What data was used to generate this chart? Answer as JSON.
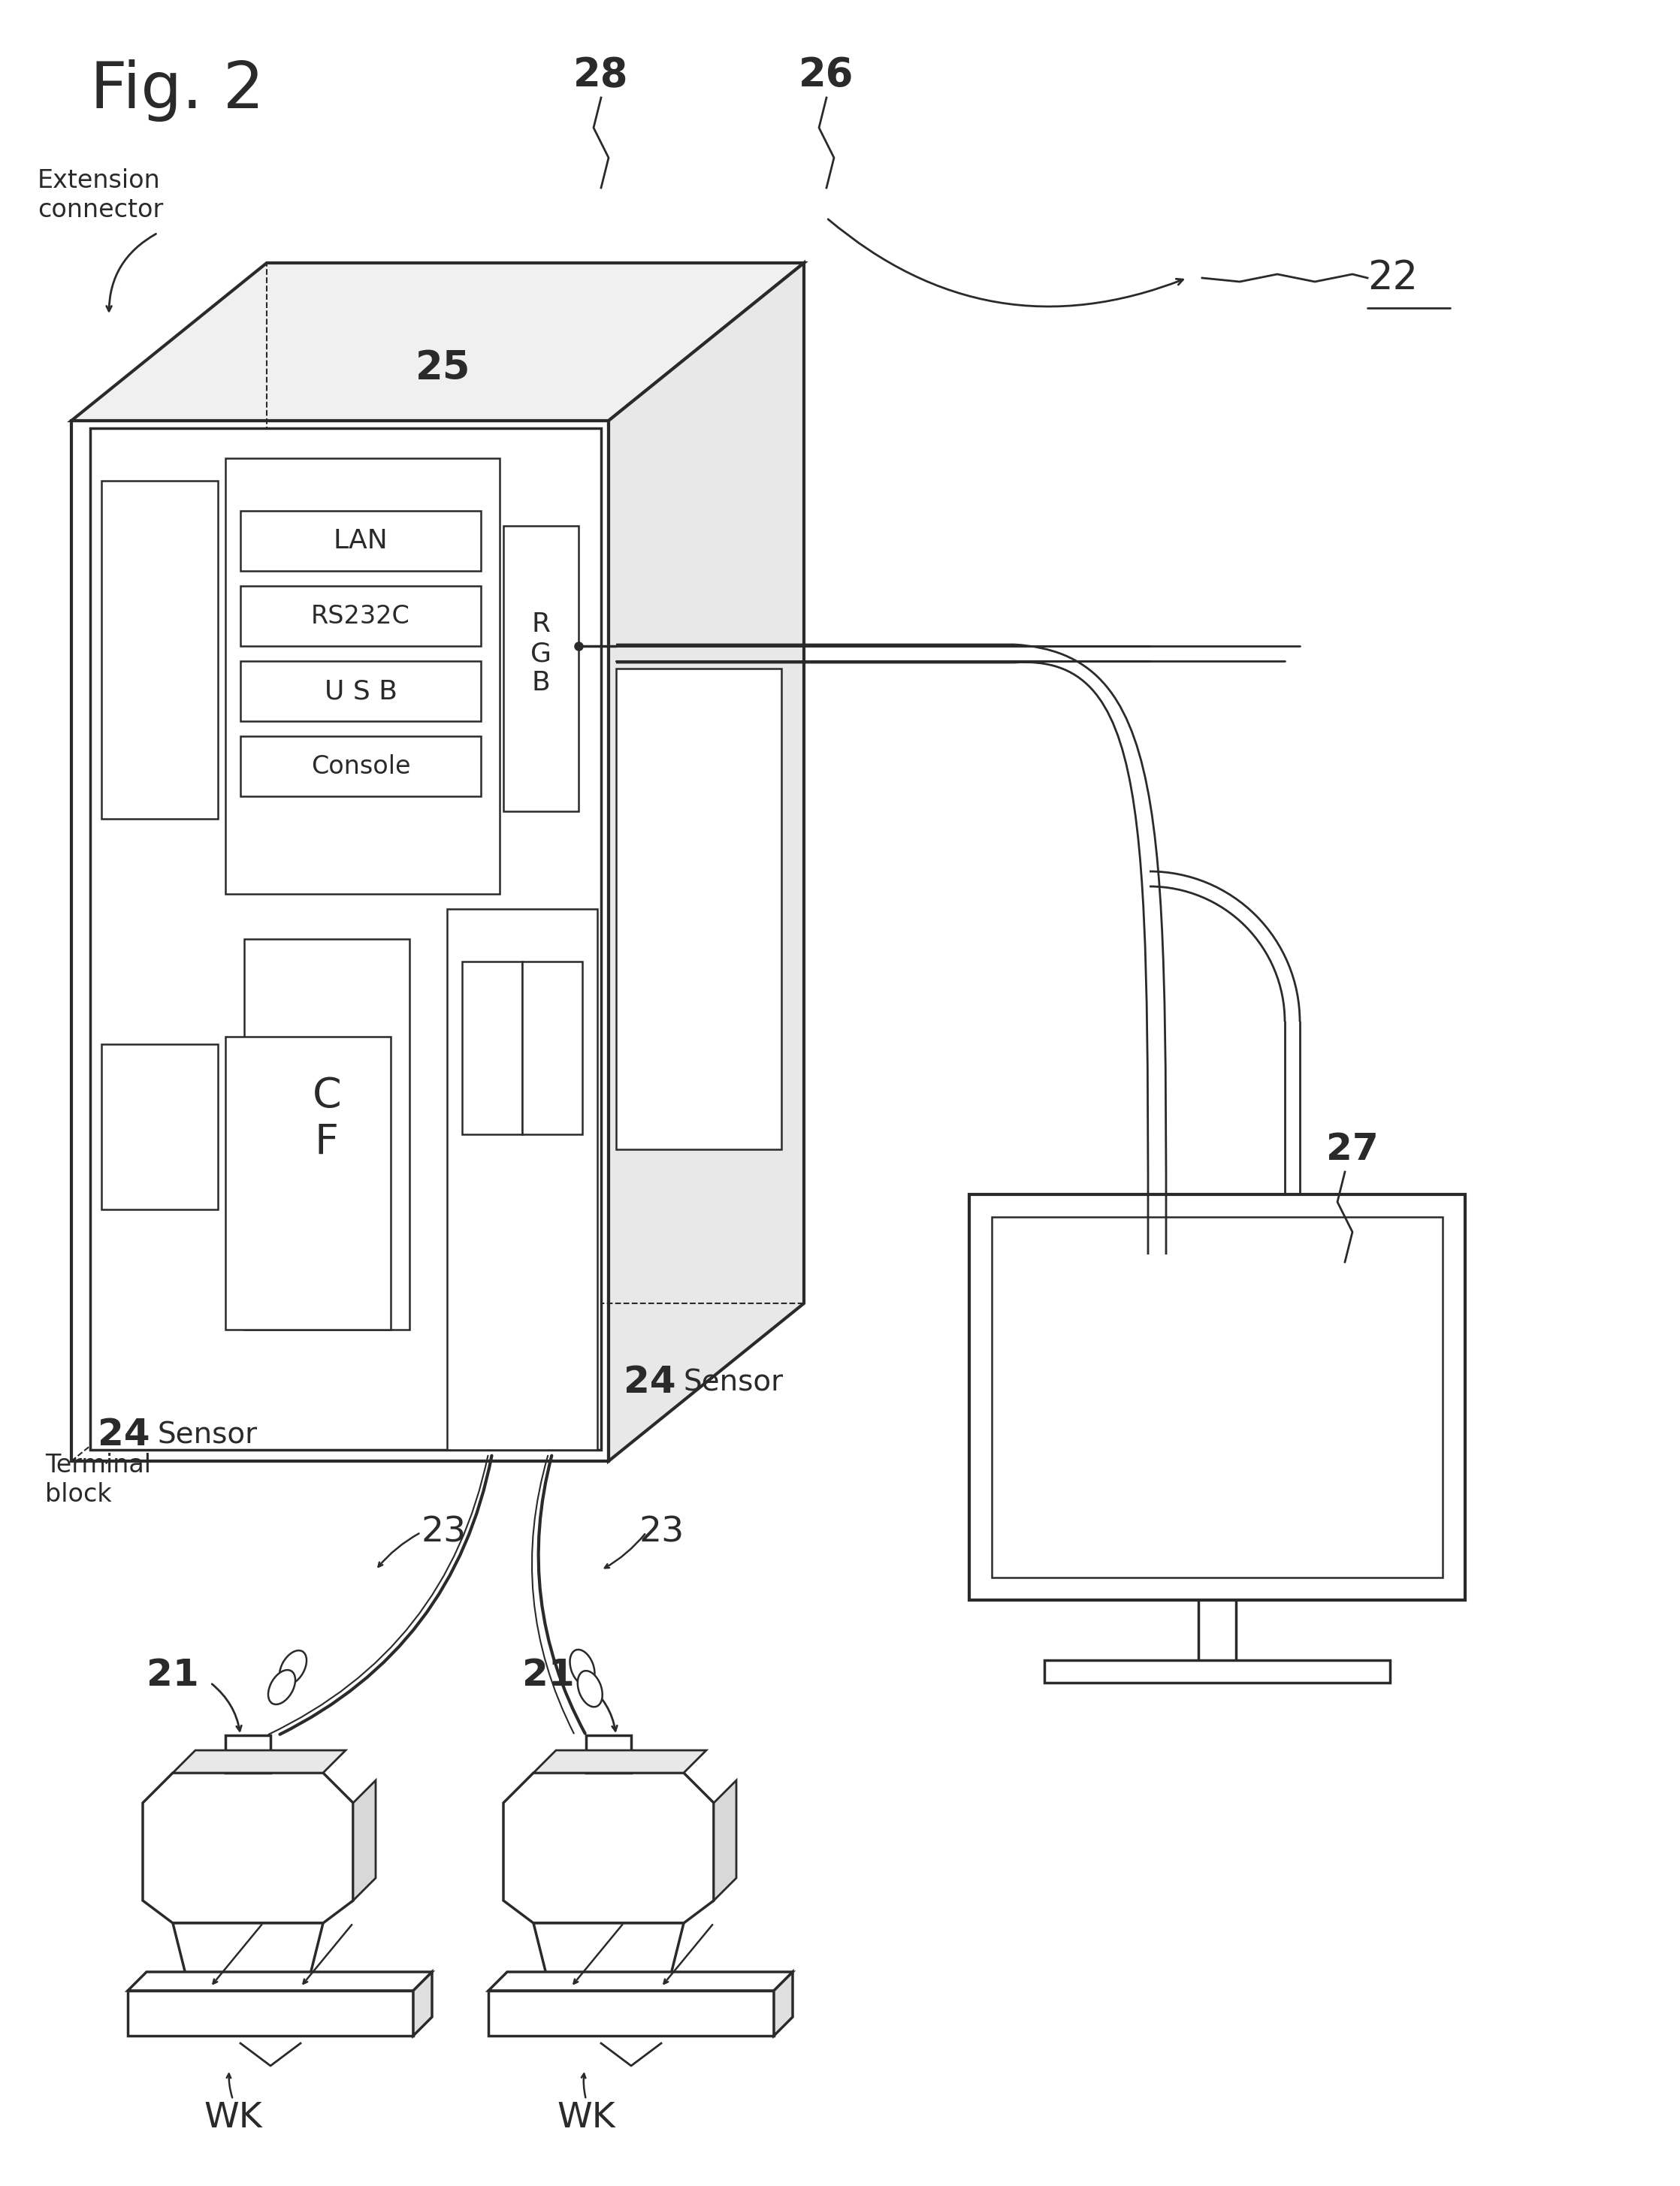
{
  "bg_color": "#ffffff",
  "line_color": "#2a2a2a",
  "lw": 2.5,
  "tlw": 1.8,
  "labels": {
    "fig_title": "Fig. 2",
    "ext_connector": "Extension\nconnector",
    "label_28": "28",
    "label_26": "26",
    "label_25": "25",
    "label_22": "22",
    "label_27": "27",
    "label_24a": "24",
    "sensor_a": "Sensor",
    "label_24b": "24",
    "sensor_b": "Sensor",
    "label_23a": "23",
    "label_23b": "23",
    "terminal_block": "Terminal\nblock",
    "label_21a": "21",
    "label_21b": "21",
    "wk_a": "WK",
    "wk_b": "WK",
    "lan": "LAN",
    "rs232c": "RS232C",
    "usb": "U S B",
    "console": "Console",
    "cf": "C\nF",
    "rgb": "R\nG\nB"
  }
}
